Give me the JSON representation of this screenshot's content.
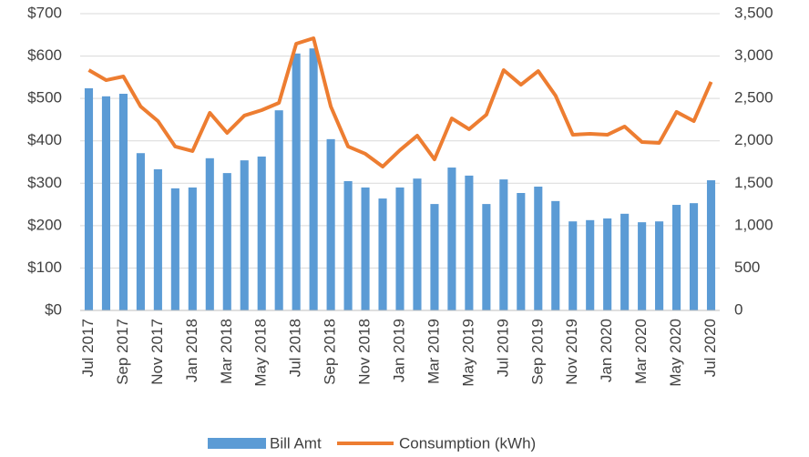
{
  "chart_data": {
    "type": "bar_line",
    "categories": [
      "Jul 2017",
      null,
      "Sep 2017",
      null,
      "Nov 2017",
      null,
      "Jan 2018",
      null,
      "Mar 2018",
      null,
      "May 2018",
      null,
      "Jul 2018",
      null,
      "Sep 2018",
      null,
      "Nov 2018",
      null,
      "Jan 2019",
      null,
      "Mar 2019",
      null,
      "May 2019",
      null,
      "Jul 2019",
      null,
      "Sep 2019",
      null,
      "Nov 2019",
      null,
      "Jan 2020",
      null,
      "Mar 2020",
      null,
      "May 2020",
      null,
      "Jul 2020"
    ],
    "series": [
      {
        "name": "Bill Amt",
        "color": "#5b9bd5",
        "kind": "bar",
        "values": [
          524,
          505,
          511,
          371,
          333,
          288,
          290,
          359,
          324,
          354,
          363,
          472,
          606,
          618,
          404,
          305,
          290,
          264,
          290,
          311,
          251,
          337,
          318,
          251,
          309,
          277,
          292,
          258,
          210,
          213,
          217,
          228,
          208,
          210,
          249,
          253,
          307
        ]
      },
      {
        "name": "Consumption (kWh)",
        "color": "#ed7d31",
        "kind": "line",
        "axis": "y2",
        "values": [
          2834,
          2716,
          2759,
          2405,
          2233,
          1933,
          1879,
          2330,
          2094,
          2298,
          2362,
          2448,
          3146,
          3210,
          2405,
          1933,
          1847,
          1696,
          1890,
          2061,
          1782,
          2265,
          2137,
          2308,
          2834,
          2662,
          2823,
          2534,
          2072,
          2083,
          2072,
          2169,
          1986,
          1976,
          2341,
          2233,
          2695
        ]
      }
    ],
    "ylim": [
      0,
      700
    ],
    "yticks": [
      {
        "value": 0,
        "label": "$0"
      },
      {
        "value": 100,
        "label": "$100"
      },
      {
        "value": 200,
        "label": "$200"
      },
      {
        "value": 300,
        "label": "$300"
      },
      {
        "value": 400,
        "label": "$400"
      },
      {
        "value": 500,
        "label": "$500"
      },
      {
        "value": 600,
        "label": "$600"
      },
      {
        "value": 700,
        "label": "$700"
      }
    ],
    "y2lim": [
      0,
      3500
    ],
    "y2ticks": [
      0,
      500,
      {
        "value": 1000,
        "label": "1,000"
      },
      {
        "value": 1500,
        "label": "1,500"
      },
      {
        "value": 2000,
        "label": "2,000"
      },
      {
        "value": 2500,
        "label": "2,500"
      },
      {
        "value": 3000,
        "label": "3,000"
      },
      {
        "value": 3500,
        "label": "3,500"
      }
    ],
    "grid": true,
    "legend": "bottom"
  }
}
